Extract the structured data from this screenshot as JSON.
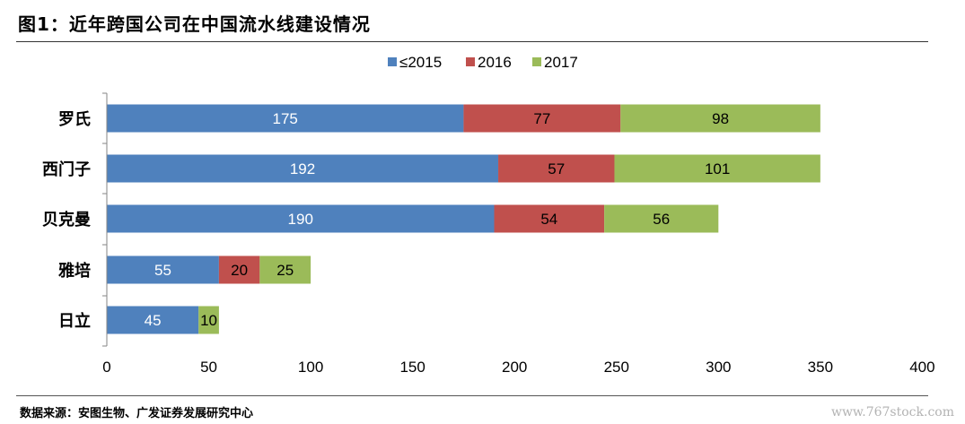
{
  "header": {
    "title": "图1：近年跨国公司在中国流水线建设情况"
  },
  "footer": {
    "source": "数据来源：安图生物、广发证券发展研究中心",
    "watermark": "www.767stock.com"
  },
  "chart_data": {
    "type": "bar",
    "orientation": "horizontal",
    "stacked": true,
    "title": "",
    "xlabel": "",
    "ylabel": "",
    "xlim": [
      0,
      400
    ],
    "x_ticks": [
      0,
      50,
      100,
      150,
      200,
      250,
      300,
      350,
      400
    ],
    "grid": false,
    "legend_position": "top-center",
    "categories": [
      "罗氏",
      "西门子",
      "贝克曼",
      "雅培",
      "日立"
    ],
    "series": [
      {
        "name": "≤2015",
        "color": "#4F81BD",
        "values": [
          175,
          192,
          190,
          55,
          45
        ]
      },
      {
        "name": "2016",
        "color": "#C0504D",
        "values": [
          77,
          57,
          54,
          20,
          null
        ]
      },
      {
        "name": "2017",
        "color": "#9BBB59",
        "values": [
          98,
          101,
          56,
          25,
          10
        ]
      }
    ]
  }
}
